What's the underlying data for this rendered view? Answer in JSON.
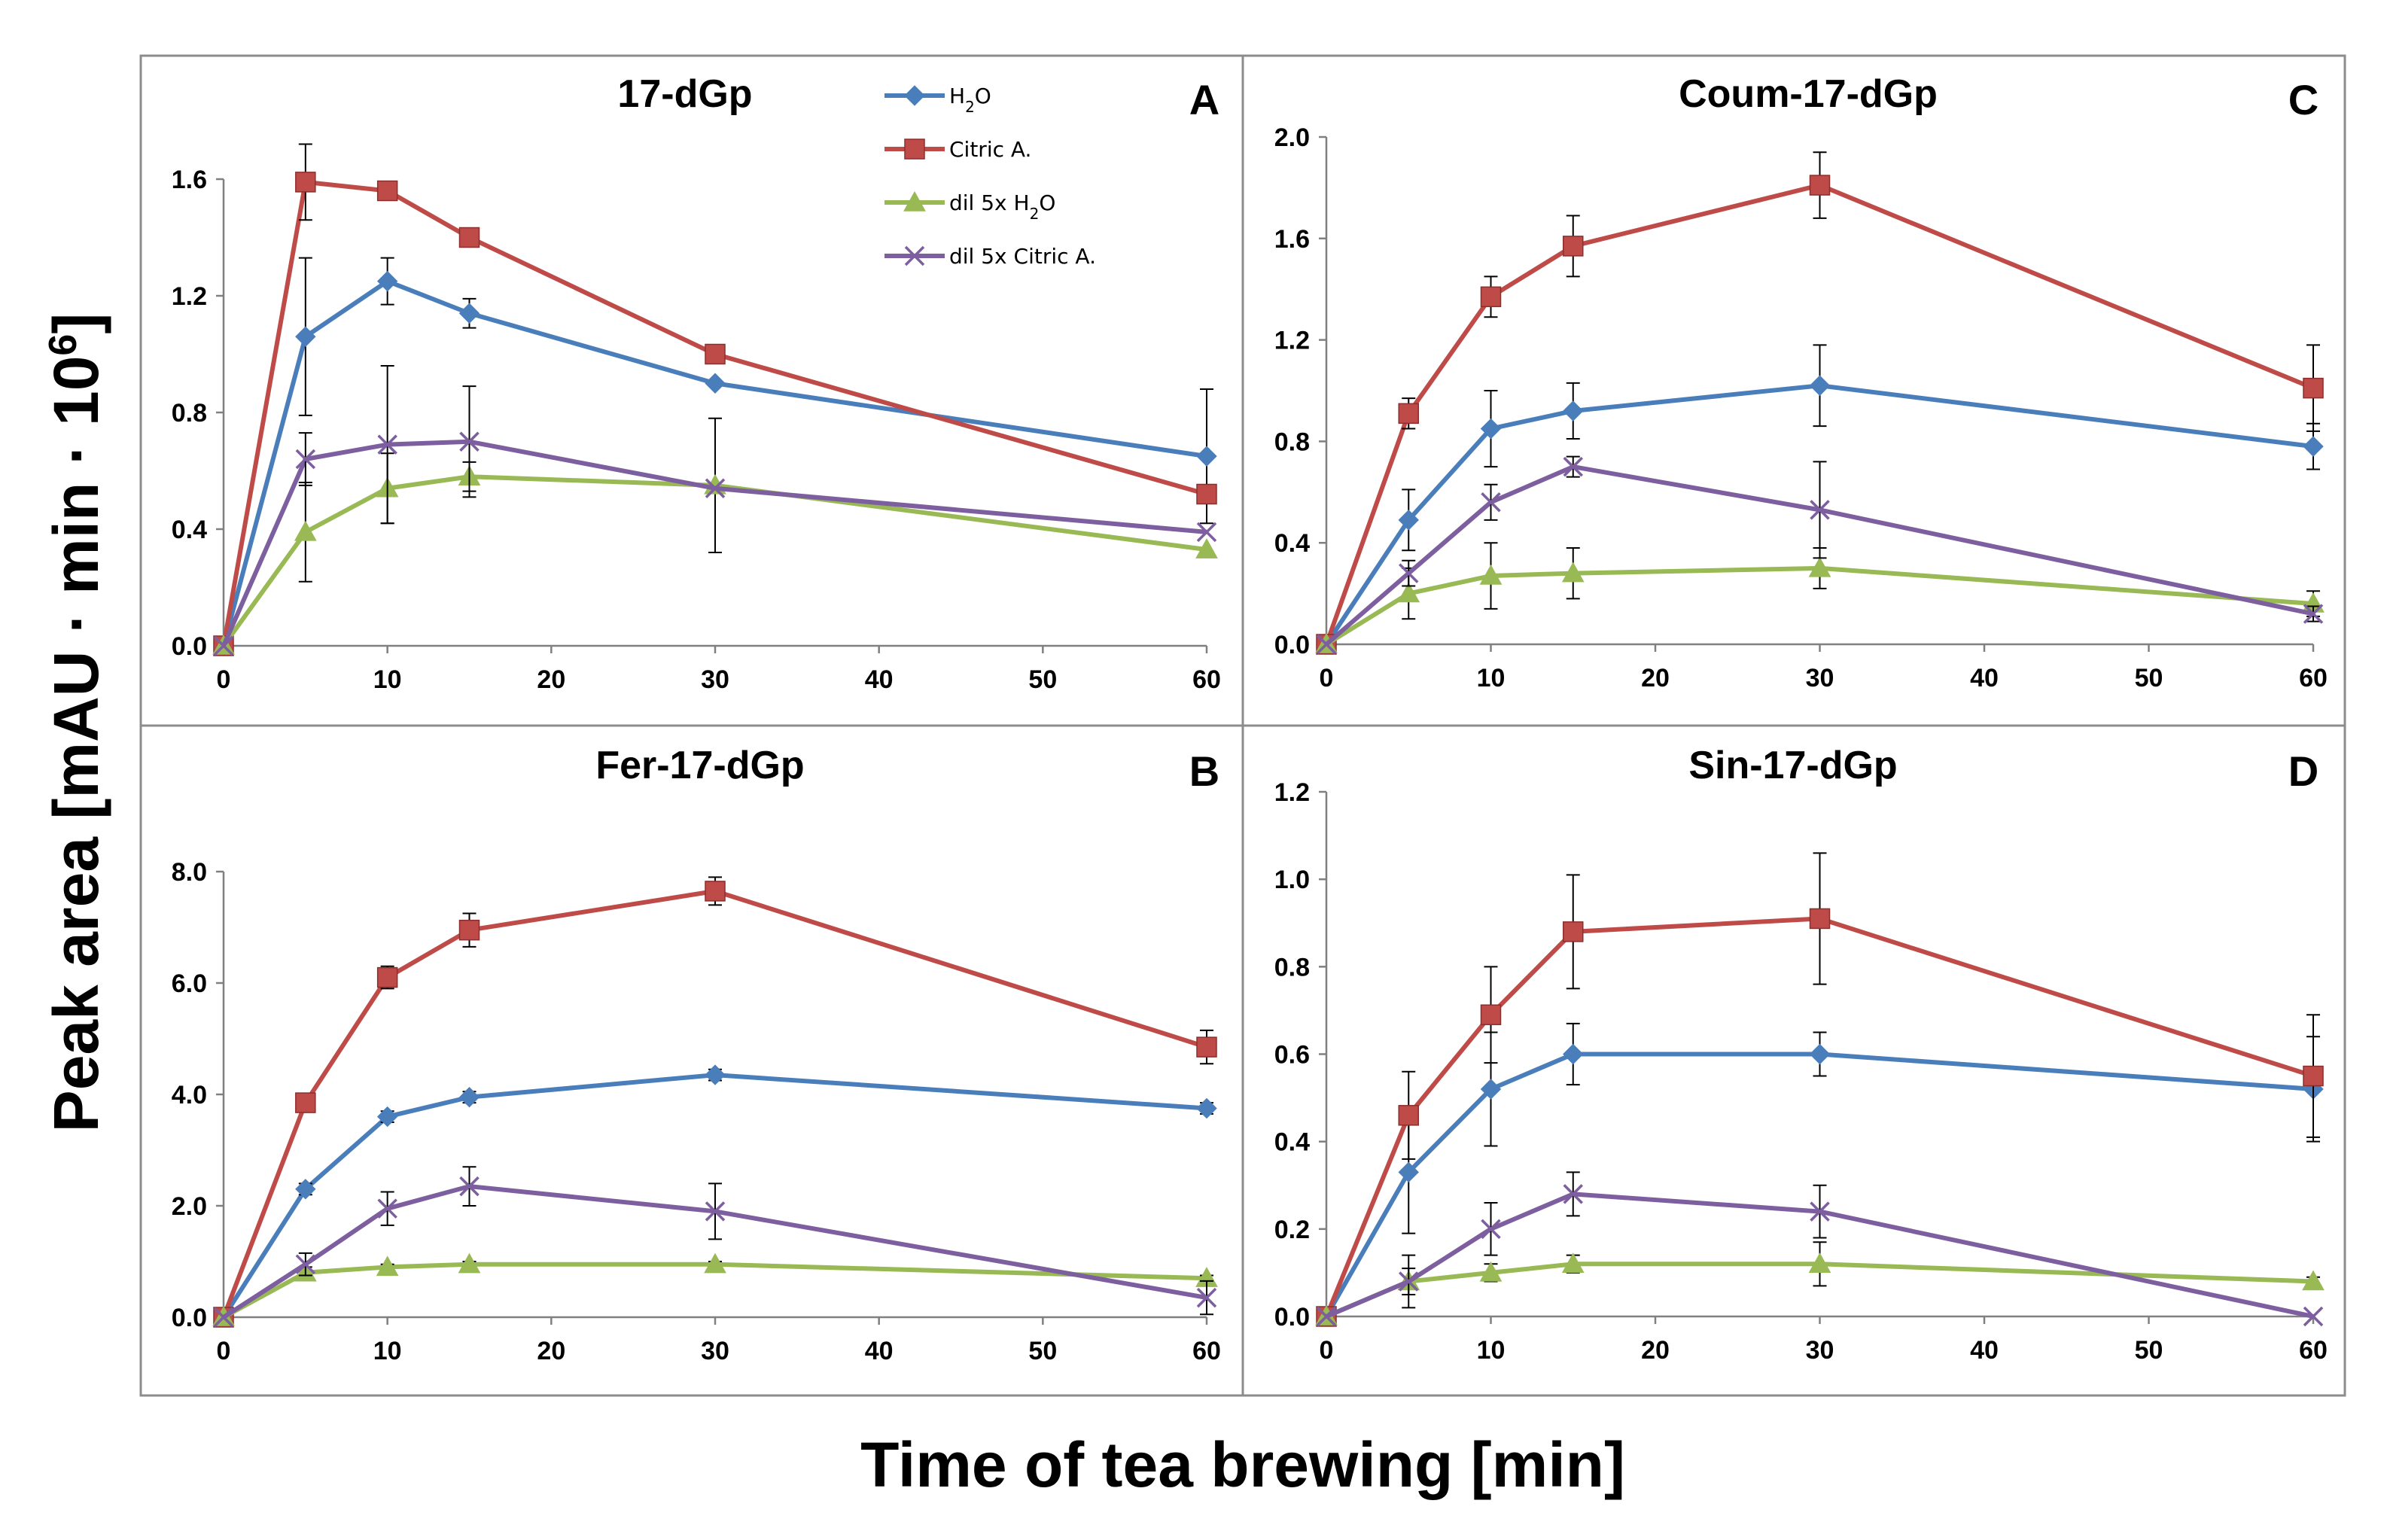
{
  "figure": {
    "y_axis_title": "Peak area [mAU · min · 10",
    "y_axis_exp": "6",
    "y_axis_close": "]",
    "x_axis_title": "Time of tea brewing [min]",
    "legend": [
      {
        "label": "H",
        "sub": "2",
        "suffix": "O",
        "marker": "diamond",
        "color": "#4A7EBB"
      },
      {
        "label": "Citric A.",
        "sub": "",
        "suffix": "",
        "marker": "square",
        "color": "#BE4B48"
      },
      {
        "label": "dil 5x H",
        "sub": "2",
        "suffix": "O",
        "marker": "triangle",
        "color": "#98B954"
      },
      {
        "label": "dil 5x Citric A.",
        "sub": "",
        "suffix": "",
        "marker": "x",
        "color": "#7D5FA0"
      }
    ]
  },
  "chart_data": [
    {
      "type": "line",
      "panel_letter": "A",
      "title": "17-dGp",
      "x": [
        0,
        5,
        10,
        15,
        30,
        60
      ],
      "xlim": [
        0,
        60
      ],
      "x_ticks": [
        "0",
        "10",
        "20",
        "30",
        "40",
        "50",
        "60"
      ],
      "ylim": [
        0,
        1.6
      ],
      "y_ticks": [
        "0.0",
        "0.4",
        "0.8",
        "1.2",
        "1.6"
      ],
      "series": [
        {
          "name": "H2O",
          "color": "#4A7EBB",
          "marker": "diamond",
          "values": [
            0,
            1.06,
            1.25,
            1.14,
            0.9,
            0.65
          ],
          "errors": [
            0,
            0.27,
            0.08,
            0.05,
            0.0,
            0.23
          ]
        },
        {
          "name": "Citric A.",
          "color": "#BE4B48",
          "marker": "square",
          "values": [
            0,
            1.59,
            1.56,
            1.4,
            1.0,
            0.52
          ],
          "errors": [
            0,
            0.13,
            0.03,
            0.0,
            0.0,
            0.0
          ]
        },
        {
          "name": "dil 5x H2O",
          "color": "#98B954",
          "marker": "triangle",
          "values": [
            0,
            0.39,
            0.54,
            0.58,
            0.55,
            0.33
          ],
          "errors": [
            0,
            0.17,
            0.12,
            0.05,
            0.23,
            0.0
          ]
        },
        {
          "name": "dil 5x Citric A.",
          "color": "#7D5FA0",
          "marker": "x",
          "values": [
            0,
            0.64,
            0.69,
            0.7,
            0.54,
            0.39
          ],
          "errors": [
            0,
            0.09,
            0.27,
            0.19,
            0.0,
            0.0
          ]
        }
      ]
    },
    {
      "type": "line",
      "panel_letter": "B",
      "title": "Fer-17-dGp",
      "x": [
        0,
        5,
        10,
        15,
        30,
        60
      ],
      "xlim": [
        0,
        60
      ],
      "x_ticks": [
        "0",
        "10",
        "20",
        "30",
        "40",
        "50",
        "60"
      ],
      "ylim": [
        0,
        8.0
      ],
      "y_ticks": [
        "0.0",
        "2.0",
        "4.0",
        "6.0",
        "8.0"
      ],
      "series": [
        {
          "name": "H2O",
          "color": "#4A7EBB",
          "marker": "diamond",
          "values": [
            0,
            2.3,
            3.6,
            3.95,
            4.35,
            3.75
          ],
          "errors": [
            0,
            0.1,
            0.1,
            0.1,
            0.1,
            0.1
          ]
        },
        {
          "name": "Citric A.",
          "color": "#BE4B48",
          "marker": "square",
          "values": [
            0,
            3.85,
            6.1,
            6.95,
            7.65,
            4.85
          ],
          "errors": [
            0,
            0.15,
            0.2,
            0.3,
            0.25,
            0.3
          ]
        },
        {
          "name": "dil 5x H2O",
          "color": "#98B954",
          "marker": "triangle",
          "values": [
            0,
            0.8,
            0.9,
            0.95,
            0.95,
            0.7
          ],
          "errors": [
            0,
            0.1,
            0.05,
            0.05,
            0.05,
            0.05
          ]
        },
        {
          "name": "dil 5x Citric A.",
          "color": "#7D5FA0",
          "marker": "x",
          "values": [
            0,
            0.95,
            1.95,
            2.35,
            1.9,
            0.35
          ],
          "errors": [
            0,
            0.2,
            0.3,
            0.35,
            0.5,
            0.3
          ]
        }
      ]
    },
    {
      "type": "line",
      "panel_letter": "C",
      "title": "Coum-17-dGp",
      "x": [
        0,
        5,
        10,
        15,
        30,
        60
      ],
      "xlim": [
        0,
        60
      ],
      "x_ticks": [
        "0",
        "10",
        "20",
        "30",
        "40",
        "50",
        "60"
      ],
      "ylim": [
        0,
        2.0
      ],
      "y_ticks": [
        "0.0",
        "0.4",
        "0.8",
        "1.2",
        "1.6",
        "2.0"
      ],
      "series": [
        {
          "name": "H2O",
          "color": "#4A7EBB",
          "marker": "diamond",
          "values": [
            0,
            0.49,
            0.85,
            0.92,
            1.02,
            0.78
          ],
          "errors": [
            0,
            0.12,
            0.15,
            0.11,
            0.16,
            0.09
          ]
        },
        {
          "name": "Citric A.",
          "color": "#BE4B48",
          "marker": "square",
          "values": [
            0,
            0.91,
            1.37,
            1.57,
            1.81,
            1.01
          ],
          "errors": [
            0,
            0.06,
            0.08,
            0.12,
            0.13,
            0.17
          ]
        },
        {
          "name": "dil 5x H2O",
          "color": "#98B954",
          "marker": "triangle",
          "values": [
            0,
            0.2,
            0.27,
            0.28,
            0.3,
            0.16
          ],
          "errors": [
            0,
            0.1,
            0.13,
            0.1,
            0.08,
            0.05
          ]
        },
        {
          "name": "dil 5x Citric A.",
          "color": "#7D5FA0",
          "marker": "x",
          "values": [
            0,
            0.28,
            0.56,
            0.7,
            0.53,
            0.12
          ],
          "errors": [
            0,
            0.05,
            0.07,
            0.04,
            0.19,
            0.03
          ]
        }
      ]
    },
    {
      "type": "line",
      "panel_letter": "D",
      "title": "Sin-17-dGp",
      "x": [
        0,
        5,
        10,
        15,
        30,
        60
      ],
      "xlim": [
        0,
        60
      ],
      "x_ticks": [
        "0",
        "10",
        "20",
        "30",
        "40",
        "50",
        "60"
      ],
      "ylim": [
        0,
        1.2
      ],
      "y_ticks": [
        "0.0",
        "0.2",
        "0.4",
        "0.6",
        "0.8",
        "1.0",
        "1.2"
      ],
      "series": [
        {
          "name": "H2O",
          "color": "#4A7EBB",
          "marker": "diamond",
          "values": [
            0,
            0.33,
            0.52,
            0.6,
            0.6,
            0.52
          ],
          "errors": [
            0,
            0.14,
            0.13,
            0.07,
            0.05,
            0.12
          ]
        },
        {
          "name": "Citric A.",
          "color": "#BE4B48",
          "marker": "square",
          "values": [
            0,
            0.46,
            0.69,
            0.88,
            0.91,
            0.55
          ],
          "errors": [
            0,
            0.1,
            0.11,
            0.13,
            0.15,
            0.14
          ]
        },
        {
          "name": "dil 5x H2O",
          "color": "#98B954",
          "marker": "triangle",
          "values": [
            0,
            0.08,
            0.1,
            0.12,
            0.12,
            0.08
          ],
          "errors": [
            0,
            0.03,
            0.02,
            0.02,
            0.05,
            0.01
          ]
        },
        {
          "name": "dil 5x Citric A.",
          "color": "#7D5FA0",
          "marker": "x",
          "values": [
            0,
            0.08,
            0.2,
            0.28,
            0.24,
            0.0
          ],
          "errors": [
            0,
            0.06,
            0.06,
            0.05,
            0.06,
            0.0
          ]
        }
      ]
    }
  ]
}
